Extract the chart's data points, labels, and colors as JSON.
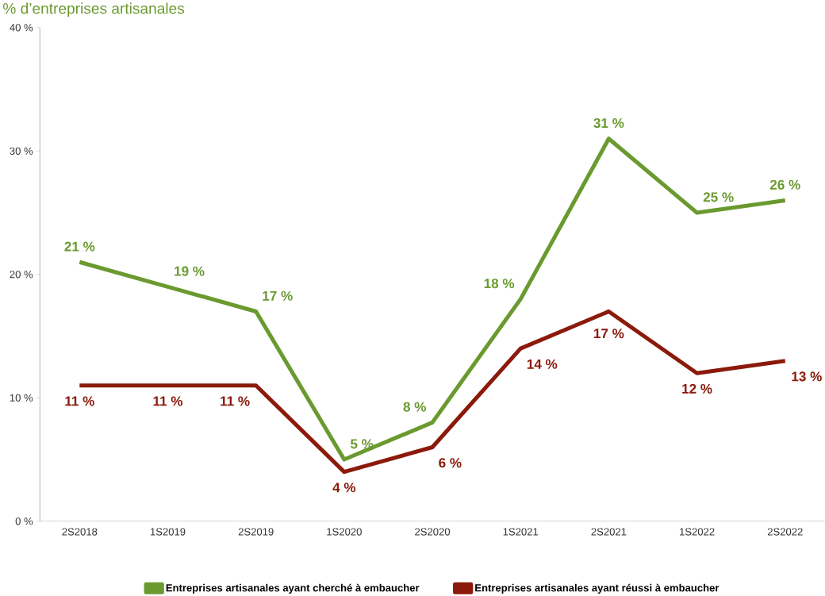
{
  "chart_data": {
    "type": "line",
    "ylabel": "% d’entreprises artisanales",
    "categories": [
      "2S2018",
      "1S2019",
      "2S2019",
      "1S2020",
      "2S2020",
      "1S2021",
      "2S2021",
      "1S2022",
      "2S2022"
    ],
    "series": [
      {
        "name": "Entreprises artisanales ayant cherché à embaucher",
        "color": "#6a9a2f",
        "values": [
          21,
          19,
          17,
          5,
          8,
          18,
          31,
          25,
          26
        ],
        "value_labels": [
          "21 %",
          "19 %",
          "17 %",
          "5 %",
          "8 %",
          "18 %",
          "31 %",
          "25 %",
          "26 %"
        ]
      },
      {
        "name": "Entreprises artisanales ayant réussi à embaucher",
        "color": "#8b1a0b",
        "values": [
          11,
          11,
          11,
          4,
          6,
          14,
          17,
          12,
          13
        ],
        "value_labels": [
          "11 %",
          "11 %",
          "11 %",
          "4 %",
          "6 %",
          "14 %",
          "17 %",
          "12 %",
          "13 %"
        ]
      }
    ],
    "ylim": [
      0,
      40
    ],
    "yticks": [
      {
        "value": 0,
        "label": "0 %"
      },
      {
        "value": 10,
        "label": "10 %"
      },
      {
        "value": 20,
        "label": "20 %"
      },
      {
        "value": 30,
        "label": "30 %"
      },
      {
        "value": 40,
        "label": "40 %"
      }
    ],
    "legend": "bottom",
    "line_style": "solid"
  }
}
